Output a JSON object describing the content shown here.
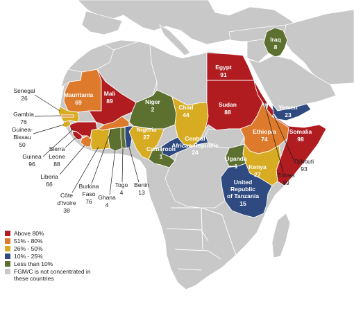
{
  "colors": {
    "ocean": "#ffffff",
    "land": "#c8c8c8",
    "border": "#ffffff",
    "above_80": "#b01c20",
    "p51_80": "#de7a2c",
    "p26_50": "#d8ac22",
    "p10_25": "#2e4a80",
    "below_10": "#5c7030",
    "not_concentrated": "#c8c8c8"
  },
  "legend": [
    {
      "key": "above_80",
      "label": "Above 80%"
    },
    {
      "key": "p51_80",
      "label": "51% - 80%"
    },
    {
      "key": "p26_50",
      "label": "26% - 50%"
    },
    {
      "key": "p10_25",
      "label": "10% - 25%"
    },
    {
      "key": "below_10",
      "label": "Less than 10%"
    },
    {
      "key": "not_concentrated",
      "label": "FGM/C is not concentrated in these countries"
    }
  ],
  "countries": {
    "egypt": {
      "name": "Egypt",
      "value": "91",
      "category": "above_80"
    },
    "sudan": {
      "name": "Sudan",
      "value": "88",
      "category": "above_80"
    },
    "mali": {
      "name": "Mali",
      "value": "89",
      "category": "above_80"
    },
    "mauritania": {
      "name": "Mauritania",
      "value": "69",
      "category": "p51_80"
    },
    "niger": {
      "name": "Niger",
      "value": "2",
      "category": "below_10"
    },
    "chad": {
      "name": "Chad",
      "value": "44",
      "category": "p26_50"
    },
    "nigeria": {
      "name": "Nigeria",
      "value": "27",
      "category": "p26_50"
    },
    "cameroon": {
      "name": "Cameroon",
      "value": "1",
      "category": "below_10"
    },
    "car": {
      "name": "Central African Republic",
      "value": "24",
      "category": "p10_25"
    },
    "ethiopia": {
      "name": "Ethiopia",
      "value": "74",
      "category": "p51_80"
    },
    "somalia": {
      "name": "Somalia",
      "value": "98",
      "category": "above_80"
    },
    "djibouti": {
      "name": "Djibouti",
      "value": "93",
      "category": "above_80"
    },
    "eritrea": {
      "name": "Eritrea",
      "value": "89",
      "category": "above_80"
    },
    "uganda": {
      "name": "Uganda",
      "value": "1",
      "category": "below_10"
    },
    "kenya": {
      "name": "Kenya",
      "value": "27",
      "category": "p26_50"
    },
    "tanzania": {
      "name": "United Republic of Tanzania",
      "name_lines": [
        "United",
        "Republic",
        "of Tanzania"
      ],
      "value": "15",
      "category": "p10_25"
    },
    "yemen": {
      "name": "Yemen",
      "value": "23",
      "category": "p10_25"
    },
    "iraq": {
      "name": "Iraq",
      "value": "8",
      "category": "below_10"
    },
    "senegal": {
      "name": "Senegal",
      "value": "26",
      "category": "p26_50"
    },
    "gambia": {
      "name": "Gambia",
      "value": "76",
      "category": "p51_80"
    },
    "guinea_bissau": {
      "name": "Guinea-Bissau",
      "name_lines": [
        "Guinea-",
        "Bissau"
      ],
      "value": "50",
      "category": "p26_50"
    },
    "guinea": {
      "name": "Guinea",
      "value": "96",
      "category": "above_80"
    },
    "sierra_leone": {
      "name": "Sierra Leone",
      "name_lines": [
        "Sierra",
        "Leone"
      ],
      "value": "88",
      "category": "above_80"
    },
    "liberia": {
      "name": "Liberia",
      "value": "66",
      "category": "p51_80"
    },
    "cote_divoire": {
      "name": "Côte d'Ivoire",
      "name_lines": [
        "Côte",
        "d'Ivoire"
      ],
      "value": "38",
      "category": "p26_50"
    },
    "burkina_faso": {
      "name": "Burkina Faso",
      "name_lines": [
        "Burkina",
        "Faso"
      ],
      "value": "76",
      "category": "p51_80"
    },
    "ghana": {
      "name": "Ghana",
      "value": "4",
      "category": "below_10"
    },
    "togo": {
      "name": "Togo",
      "value": "4",
      "category": "below_10"
    },
    "benin": {
      "name": "Benin",
      "value": "13",
      "category": "p10_25"
    }
  }
}
